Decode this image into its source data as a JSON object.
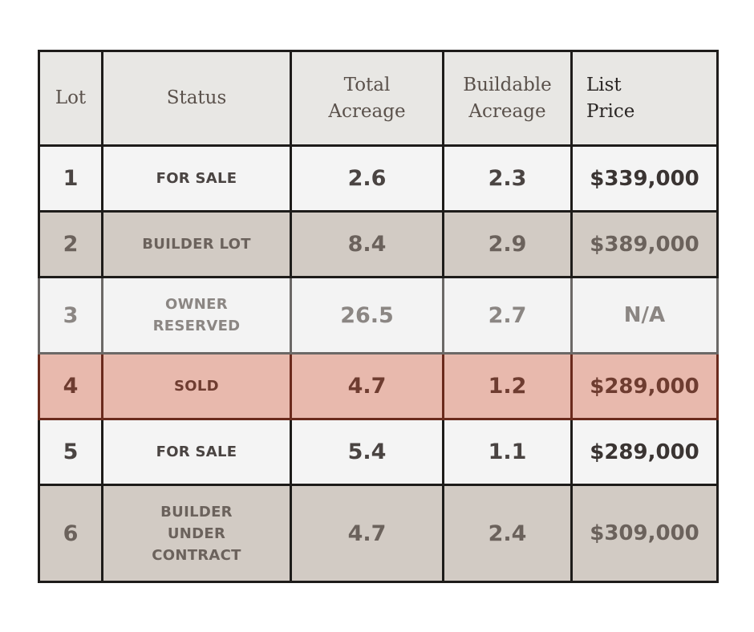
{
  "headers": {
    "lot": "Lot",
    "status": "Status",
    "total_line1": "Total",
    "total_line2": "Acreage",
    "buildable_line1": "Buildable",
    "buildable_line2": "Acreage",
    "price_line1": "List",
    "price_line2": "Price"
  },
  "rows": [
    {
      "lot": "1",
      "status": [
        "FOR SALE"
      ],
      "total": "2.6",
      "buildable": "2.3",
      "price": "$339,000",
      "style": "light"
    },
    {
      "lot": "2",
      "status": [
        "BUILDER LOT"
      ],
      "total": "8.4",
      "buildable": "2.9",
      "price": "$389,000",
      "style": "taupe"
    },
    {
      "lot": "3",
      "status": [
        "OWNER",
        "RESERVED"
      ],
      "total": "26.5",
      "buildable": "2.7",
      "price": "N/A",
      "style": "muted"
    },
    {
      "lot": "4",
      "status": [
        "SOLD"
      ],
      "total": "4.7",
      "buildable": "1.2",
      "price": "$289,000",
      "style": "sold"
    },
    {
      "lot": "5",
      "status": [
        "FOR SALE"
      ],
      "total": "5.4",
      "buildable": "1.1",
      "price": "$289,000",
      "style": "light"
    },
    {
      "lot": "6",
      "status": [
        "BUILDER",
        "UNDER",
        "CONTRACT"
      ],
      "total": "4.7",
      "buildable": "2.4",
      "price": "$309,000",
      "style": "taupe"
    }
  ],
  "colors": {
    "header_bg": "#e8e7e4",
    "row_light": "#f4f4f4",
    "row_taupe": "#d2cbc4",
    "row_sold": "#e8b9ad",
    "border": "#1e1c1a"
  }
}
